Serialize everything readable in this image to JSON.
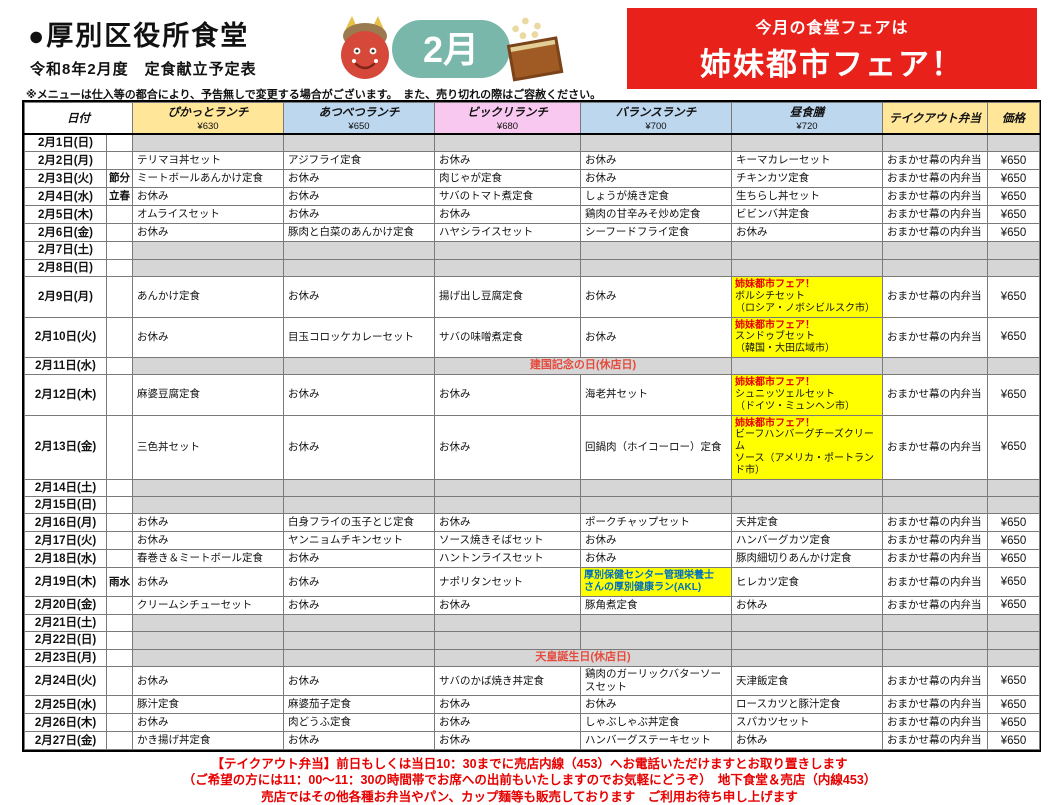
{
  "header": {
    "title": "●厚別区役所食堂",
    "subtitle": "令和8年2月度　定食献立予定表",
    "note": "※メニューは仕入等の都合により、予告無しで変更する場合がございます。　また、売り切れの際はご容赦ください。",
    "month_badge": "2月",
    "fair_banner": {
      "line1": "今月の食堂フェアは",
      "line2": "姉妹都市フェア！"
    }
  },
  "colors": {
    "banner_red": "#e8211b",
    "closed_gray": "#d6d6d6",
    "fair_yellow": "#ffff00",
    "holiday_text_red": "#e64a3c",
    "fair_label_red": "#e60000",
    "health_text_blue": "#0070c0",
    "header_yellow": "#ffe699",
    "header_blue": "#bdd7ee",
    "header_pink": "#f9c8f0"
  },
  "table": {
    "columns": [
      {
        "label": "日付",
        "price": "",
        "color": "#ffffff"
      },
      {
        "label": "ぴかっとランチ",
        "price": "¥630",
        "color": "#ffe699"
      },
      {
        "label": "あつべつランチ",
        "price": "¥650",
        "color": "#bdd7ee"
      },
      {
        "label": "ビックリランチ",
        "price": "¥680",
        "color": "#f9c8f0"
      },
      {
        "label": "バランスランチ",
        "price": "¥700",
        "color": "#bdd7ee"
      },
      {
        "label": "昼食膳",
        "price": "¥720",
        "color": "#bdd7ee"
      },
      {
        "label": "テイクアウト弁当",
        "price": "",
        "color": "#ffe699"
      },
      {
        "label": "価格",
        "price": "",
        "color": "#ffe699"
      }
    ],
    "rows": [
      {
        "date": "2月1日(日)",
        "season": "",
        "type": "closed"
      },
      {
        "date": "2月2日(月)",
        "season": "",
        "type": "open",
        "menus": [
          "テリマヨ丼セット",
          "アジフライ定食",
          "お休み",
          "お休み",
          "キーマカレーセット"
        ],
        "takeout": "おまかせ幕の内弁当",
        "price": "¥650"
      },
      {
        "date": "2月3日(火)",
        "season": "節分",
        "type": "open",
        "menus": [
          "ミートボールあんかけ定食",
          "お休み",
          "肉じゃが定食",
          "お休み",
          "チキンカツ定食"
        ],
        "takeout": "おまかせ幕の内弁当",
        "price": "¥650"
      },
      {
        "date": "2月4日(水)",
        "season": "立春",
        "type": "open",
        "menus": [
          "お休み",
          "お休み",
          "サバのトマト煮定食",
          "しょうが焼き定食",
          "生ちらし丼セット"
        ],
        "takeout": "おまかせ幕の内弁当",
        "price": "¥650"
      },
      {
        "date": "2月5日(木)",
        "season": "",
        "type": "open",
        "menus": [
          "オムライスセット",
          "お休み",
          "お休み",
          "鶏肉の甘辛みそ炒め定食",
          "ビビンバ丼定食"
        ],
        "takeout": "おまかせ幕の内弁当",
        "price": "¥650"
      },
      {
        "date": "2月6日(金)",
        "season": "",
        "type": "open",
        "menus": [
          "お休み",
          "豚肉と白菜のあんかけ定食",
          "ハヤシライスセット",
          "シーフードフライ定食",
          "お休み"
        ],
        "takeout": "おまかせ幕の内弁当",
        "price": "¥650"
      },
      {
        "date": "2月7日(土)",
        "season": "",
        "type": "closed"
      },
      {
        "date": "2月8日(日)",
        "season": "",
        "type": "closed"
      },
      {
        "date": "2月9日(月)",
        "season": "",
        "type": "open",
        "menus": [
          "あんかけ定食",
          "お休み",
          "揚げ出し豆腐定食",
          "お休み",
          {
            "kind": "fair",
            "top": "姉妹都市フェア！",
            "lines": [
              "ボルシチセット",
              "（ロシア・ノボシビルスク市）"
            ]
          }
        ],
        "takeout": "おまかせ幕の内弁当",
        "price": "¥650"
      },
      {
        "date": "2月10日(火)",
        "season": "",
        "type": "open",
        "menus": [
          "お休み",
          "目玉コロッケカレーセット",
          "サバの味噌煮定食",
          "お休み",
          {
            "kind": "fair",
            "top": "姉妹都市フェア！",
            "lines": [
              "スンドゥブセット",
              "（韓国・大田広域市）"
            ]
          }
        ],
        "takeout": "おまかせ幕の内弁当",
        "price": "¥650"
      },
      {
        "date": "2月11日(水)",
        "season": "",
        "type": "holiday",
        "holiday": "建国記念の日(休店日)"
      },
      {
        "date": "2月12日(木)",
        "season": "",
        "type": "open",
        "menus": [
          "麻婆豆腐定食",
          "お休み",
          "お休み",
          "海老丼セット",
          {
            "kind": "fair",
            "top": "姉妹都市フェア！",
            "lines": [
              "シュニッツェルセット",
              "（ドイツ・ミュンヘン市）"
            ]
          }
        ],
        "takeout": "おまかせ幕の内弁当",
        "price": "¥650"
      },
      {
        "date": "2月13日(金)",
        "season": "",
        "type": "open",
        "menus": [
          "三色丼セット",
          "お休み",
          "お休み",
          "回鍋肉（ホイコーロー）定食",
          {
            "kind": "fair",
            "top": "姉妹都市フェア！",
            "lines": [
              "ビーフハンバーグチーズクリーム",
              "ソース（アメリカ・ポートランド市）"
            ]
          }
        ],
        "takeout": "おまかせ幕の内弁当",
        "price": "¥650"
      },
      {
        "date": "2月14日(土)",
        "season": "",
        "type": "closed"
      },
      {
        "date": "2月15日(日)",
        "season": "",
        "type": "closed"
      },
      {
        "date": "2月16日(月)",
        "season": "",
        "type": "open",
        "menus": [
          "お休み",
          "白身フライの玉子とじ定食",
          "お休み",
          "ポークチャップセット",
          "天丼定食"
        ],
        "takeout": "おまかせ幕の内弁当",
        "price": "¥650"
      },
      {
        "date": "2月17日(火)",
        "season": "",
        "type": "open",
        "menus": [
          "お休み",
          "ヤンニョムチキンセット",
          "ソース焼きそばセット",
          "お休み",
          "ハンバーグカツ定食"
        ],
        "takeout": "おまかせ幕の内弁当",
        "price": "¥650"
      },
      {
        "date": "2月18日(水)",
        "season": "",
        "type": "open",
        "menus": [
          "春巻き＆ミートボール定食",
          "お休み",
          "ハントンライスセット",
          "お休み",
          "豚肉細切りあんかけ定食"
        ],
        "takeout": "おまかせ幕の内弁当",
        "price": "¥650"
      },
      {
        "date": "2月19日(木)",
        "season": "雨水",
        "type": "open",
        "menus": [
          "お休み",
          "お休み",
          "ナポリタンセット",
          {
            "kind": "health",
            "lines": [
              "厚別保健センター管理栄養士",
              "さんの厚別健康ラン(AKL)"
            ]
          },
          "ヒレカツ定食"
        ],
        "takeout": "おまかせ幕の内弁当",
        "price": "¥650"
      },
      {
        "date": "2月20日(金)",
        "season": "",
        "type": "open",
        "menus": [
          "クリームシチューセット",
          "お休み",
          "お休み",
          "豚角煮定食",
          "お休み"
        ],
        "takeout": "おまかせ幕の内弁当",
        "price": "¥650"
      },
      {
        "date": "2月21日(土)",
        "season": "",
        "type": "closed"
      },
      {
        "date": "2月22日(日)",
        "season": "",
        "type": "closed"
      },
      {
        "date": "2月23日(月)",
        "season": "",
        "type": "holiday",
        "holiday": "天皇誕生日(休店日)"
      },
      {
        "date": "2月24日(火)",
        "season": "",
        "type": "open",
        "menus": [
          "お休み",
          "お休み",
          "サバのかば焼き丼定食",
          "鶏肉のガーリックバターソースセット",
          "天津飯定食"
        ],
        "takeout": "おまかせ幕の内弁当",
        "price": "¥650"
      },
      {
        "date": "2月25日(水)",
        "season": "",
        "type": "open",
        "menus": [
          "豚汁定食",
          "麻婆茄子定食",
          "お休み",
          "お休み",
          "ロースカツと豚汁定食"
        ],
        "takeout": "おまかせ幕の内弁当",
        "price": "¥650"
      },
      {
        "date": "2月26日(木)",
        "season": "",
        "type": "open",
        "menus": [
          "お休み",
          "肉どうふ定食",
          "お休み",
          "しゃぶしゃぶ丼定食",
          "スパカツセット"
        ],
        "takeout": "おまかせ幕の内弁当",
        "price": "¥650"
      },
      {
        "date": "2月27日(金)",
        "season": "",
        "type": "open",
        "menus": [
          "かき揚げ丼定食",
          "お休み",
          "お休み",
          "ハンバーグステーキセット",
          "お休み"
        ],
        "takeout": "おまかせ幕の内弁当",
        "price": "¥650"
      }
    ]
  },
  "footer": {
    "lines": [
      "【テイクアウト弁当】前日もしくは当日10：30までに売店内線（453）へお電話いただけますとお取り置きします",
      "（ご希望の方には11：00～11：30の時間帯でお席への出前もいたしますのでお気軽にどうぞ）　地下食堂＆売店（内線453）",
      "売店ではその他各種お弁当やパン、カップ麺等も販売しております　ご利用お待ち申し上げます"
    ]
  }
}
